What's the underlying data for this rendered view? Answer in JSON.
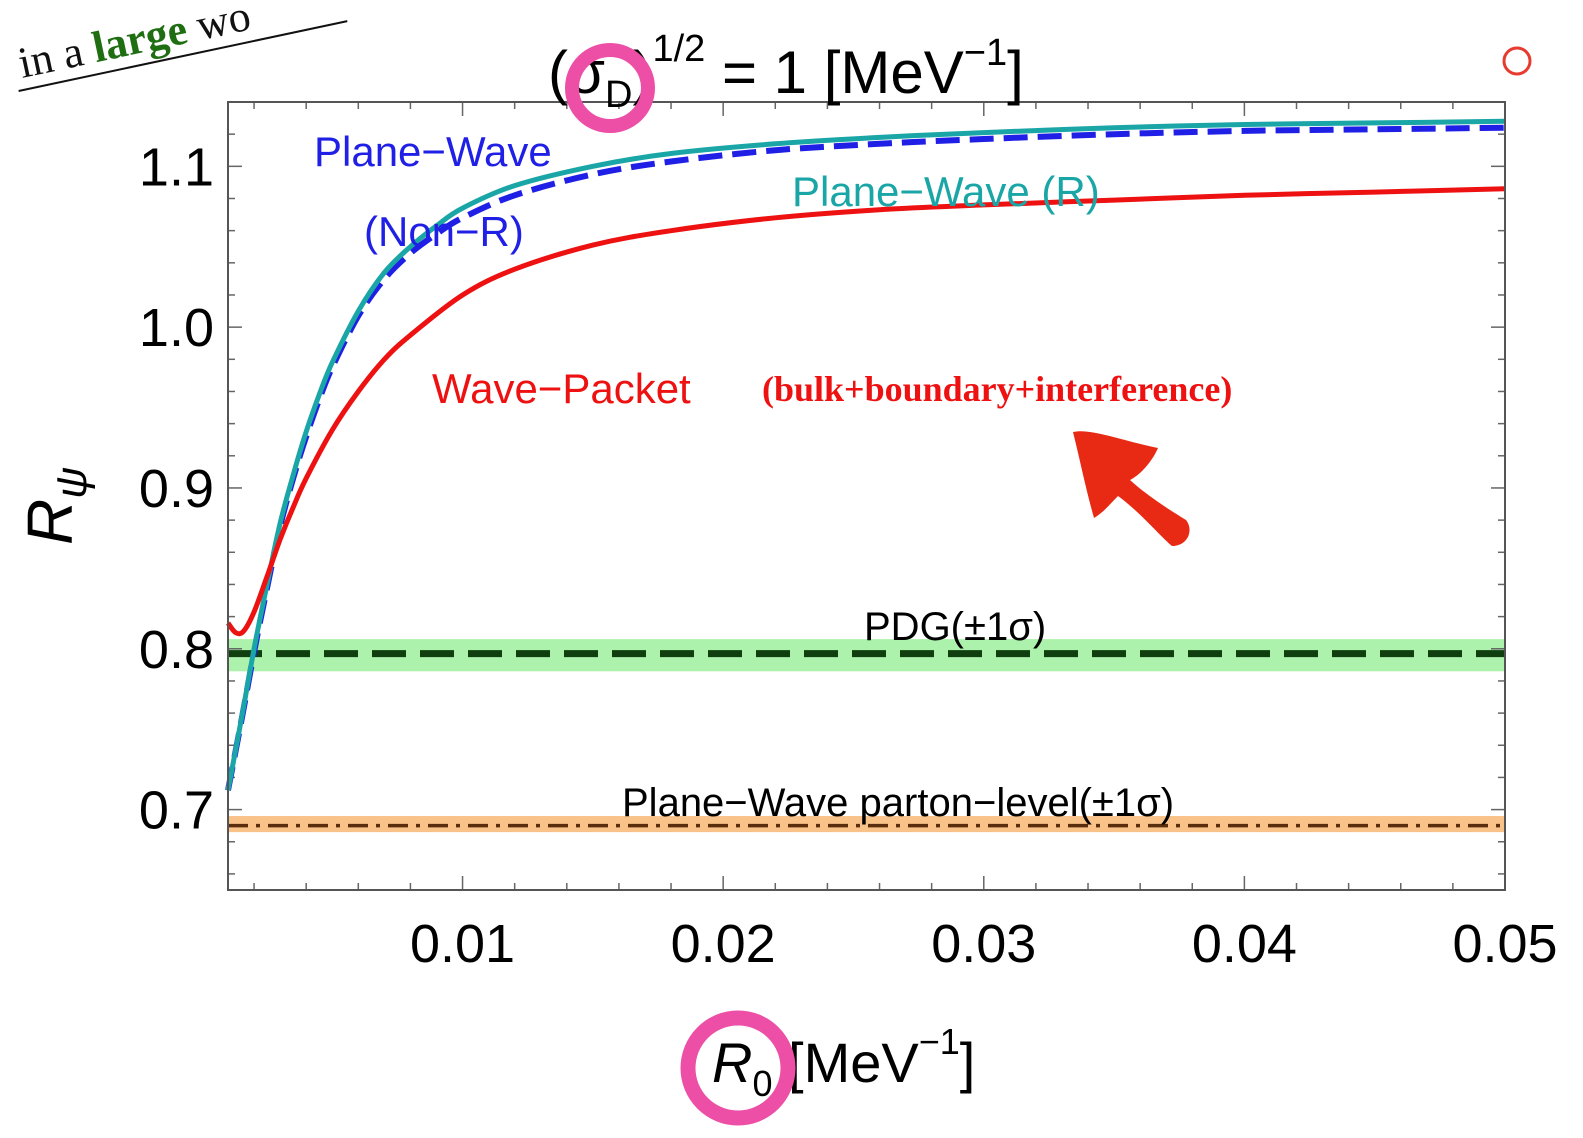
{
  "colors": {
    "plane_wave_nonr": "#1f1fe6",
    "plane_wave_r": "#1aa6a6",
    "wave_packet": "#ee1111",
    "pdg_line": "#0f3f0f",
    "pdg_band": "#90ee90",
    "parton_line": "#5a2d0c",
    "parton_band": "#f5ad62",
    "annotation_green": "#1f6e12",
    "marker_pink": "#ee4fa6",
    "arrow_red": "#e82a14"
  },
  "icons": {
    "arrow": "hand-drawn-arrow-icon"
  },
  "chart_data": {
    "type": "line",
    "title_parts": {
      "base": "(σ",
      "sub": "D",
      "close": ")",
      "sup": "1/2",
      "rest": " = 1 [MeV",
      "unit_sup": "−1",
      "end": "]"
    },
    "xlabel_parts": {
      "base": "R",
      "sub": "0",
      "rest": " [MeV",
      "sup": "−1",
      "end": "]"
    },
    "ylabel_parts": {
      "base": "R",
      "sub": "ψ"
    },
    "xlim": [
      0.001,
      0.05
    ],
    "ylim": [
      0.65,
      1.14
    ],
    "xticks": [
      0.01,
      0.02,
      0.03,
      0.04,
      0.05
    ],
    "xtick_labels": [
      "0.01",
      "0.02",
      "0.03",
      "0.04",
      "0.05"
    ],
    "yticks": [
      0.7,
      0.8,
      0.9,
      1.0,
      1.1
    ],
    "ytick_labels": [
      "0.7",
      "0.8",
      "0.9",
      "1.0",
      "1.1"
    ],
    "series": [
      {
        "name": "Plane−Wave (R)",
        "x": [
          0.001,
          0.0015,
          0.002,
          0.0025,
          0.003,
          0.0035,
          0.004,
          0.0045,
          0.005,
          0.006,
          0.007,
          0.008,
          0.009,
          0.01,
          0.012,
          0.015,
          0.018,
          0.022,
          0.026,
          0.03,
          0.035,
          0.04,
          0.045,
          0.05
        ],
        "y": [
          0.712,
          0.755,
          0.8,
          0.84,
          0.878,
          0.908,
          0.935,
          0.958,
          0.978,
          1.01,
          1.034,
          1.05,
          1.063,
          1.074,
          1.088,
          1.1,
          1.108,
          1.114,
          1.118,
          1.121,
          1.124,
          1.126,
          1.127,
          1.128
        ]
      },
      {
        "name": "Plane−Wave (Non−R)",
        "x": [
          0.001,
          0.0015,
          0.002,
          0.0025,
          0.003,
          0.0035,
          0.004,
          0.0045,
          0.005,
          0.006,
          0.007,
          0.008,
          0.009,
          0.01,
          0.012,
          0.015,
          0.018,
          0.022,
          0.026,
          0.03,
          0.035,
          0.04,
          0.045,
          0.05
        ],
        "y": [
          0.712,
          0.754,
          0.798,
          0.838,
          0.876,
          0.906,
          0.932,
          0.955,
          0.975,
          1.007,
          1.03,
          1.046,
          1.058,
          1.068,
          1.082,
          1.095,
          1.103,
          1.11,
          1.114,
          1.117,
          1.12,
          1.122,
          1.123,
          1.124
        ]
      },
      {
        "name": "Wave−Packet",
        "x": [
          0.001,
          0.0013,
          0.0016,
          0.002,
          0.0025,
          0.003,
          0.0035,
          0.004,
          0.005,
          0.006,
          0.007,
          0.008,
          0.01,
          0.012,
          0.015,
          0.018,
          0.022,
          0.026,
          0.03,
          0.035,
          0.04,
          0.045,
          0.05
        ],
        "y": [
          0.816,
          0.81,
          0.811,
          0.823,
          0.845,
          0.868,
          0.888,
          0.906,
          0.936,
          0.96,
          0.98,
          0.995,
          1.02,
          1.036,
          1.051,
          1.06,
          1.068,
          1.073,
          1.076,
          1.079,
          1.082,
          1.084,
          1.086
        ]
      }
    ],
    "reference_lines": [
      {
        "name": "PDG(±1σ)",
        "value": 0.797,
        "band": [
          0.786,
          0.806
        ],
        "style": "dashed"
      },
      {
        "name": "Plane−Wave parton−level(±1σ)",
        "value": 0.69,
        "band": [
          0.686,
          0.696
        ],
        "style": "dash-dot"
      }
    ],
    "annotations": {
      "plane_wave_line1": "Plane−Wave",
      "plane_wave_line2": "(Non−R)",
      "plane_wave_r": "Plane−Wave (R)",
      "wave_packet": "Wave−Packet",
      "wave_packet_detail": "(bulk+boundary+interference)",
      "pdg": "PDG(±1σ)",
      "parton": "Plane−Wave parton−level(±1σ)",
      "corner_note": "in a large wo"
    }
  }
}
